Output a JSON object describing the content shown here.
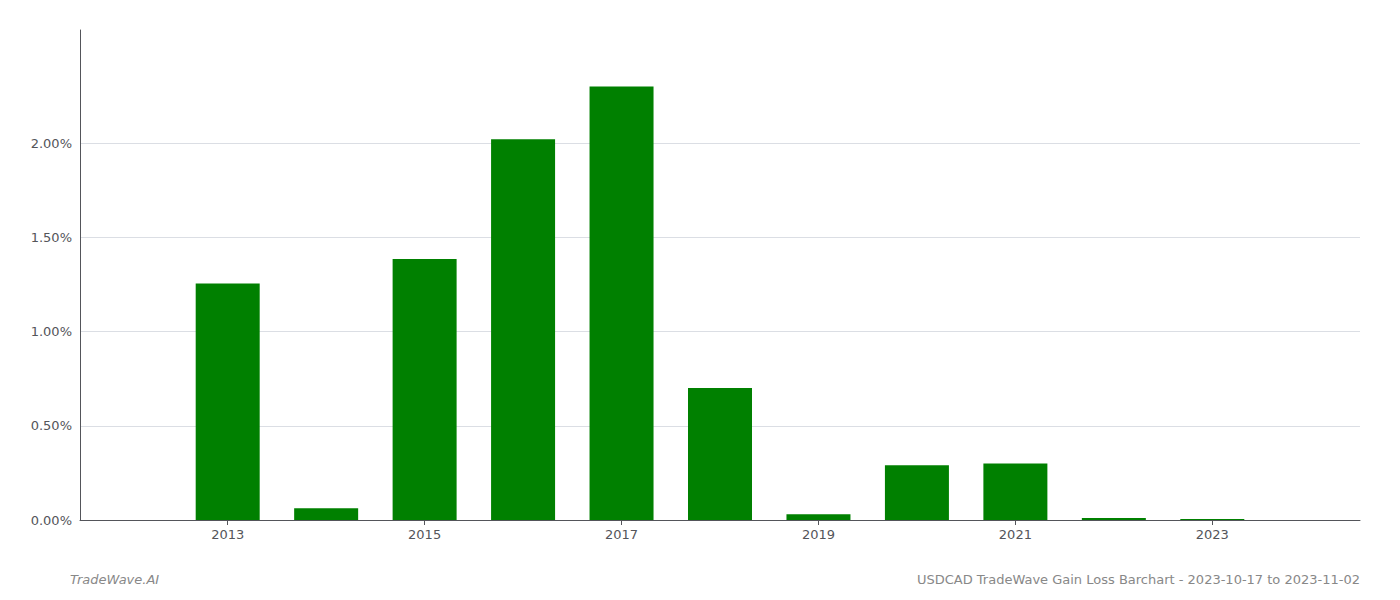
{
  "chart_data": {
    "type": "bar",
    "x": [
      2013,
      2014,
      2015,
      2016,
      2017,
      2018,
      2019,
      2020,
      2021,
      2022,
      2023
    ],
    "values": [
      0.01255,
      0.00062,
      0.01385,
      0.0202,
      0.023,
      0.007,
      0.0003,
      0.0029,
      0.003,
      0.0001,
      5e-05
    ],
    "color": "#008000",
    "xlim": [
      2011.5,
      2024.5
    ],
    "xticks": [
      2013,
      2015,
      2017,
      2019,
      2021,
      2023
    ],
    "ylim": [
      0,
      0.026
    ],
    "yticks": [
      {
        "value": 0,
        "label": "0.00%"
      },
      {
        "value": 0.005,
        "label": "0.50%"
      },
      {
        "value": 0.01,
        "label": "1.00%"
      },
      {
        "value": 0.015,
        "label": "1.50%"
      },
      {
        "value": 0.02,
        "label": "2.00%"
      }
    ],
    "grid": true,
    "annotations": [
      "TradeWave.AI",
      "USDCAD TradeWave Gain Loss Barchart - 2023-10-17 to 2023-11-02"
    ]
  }
}
